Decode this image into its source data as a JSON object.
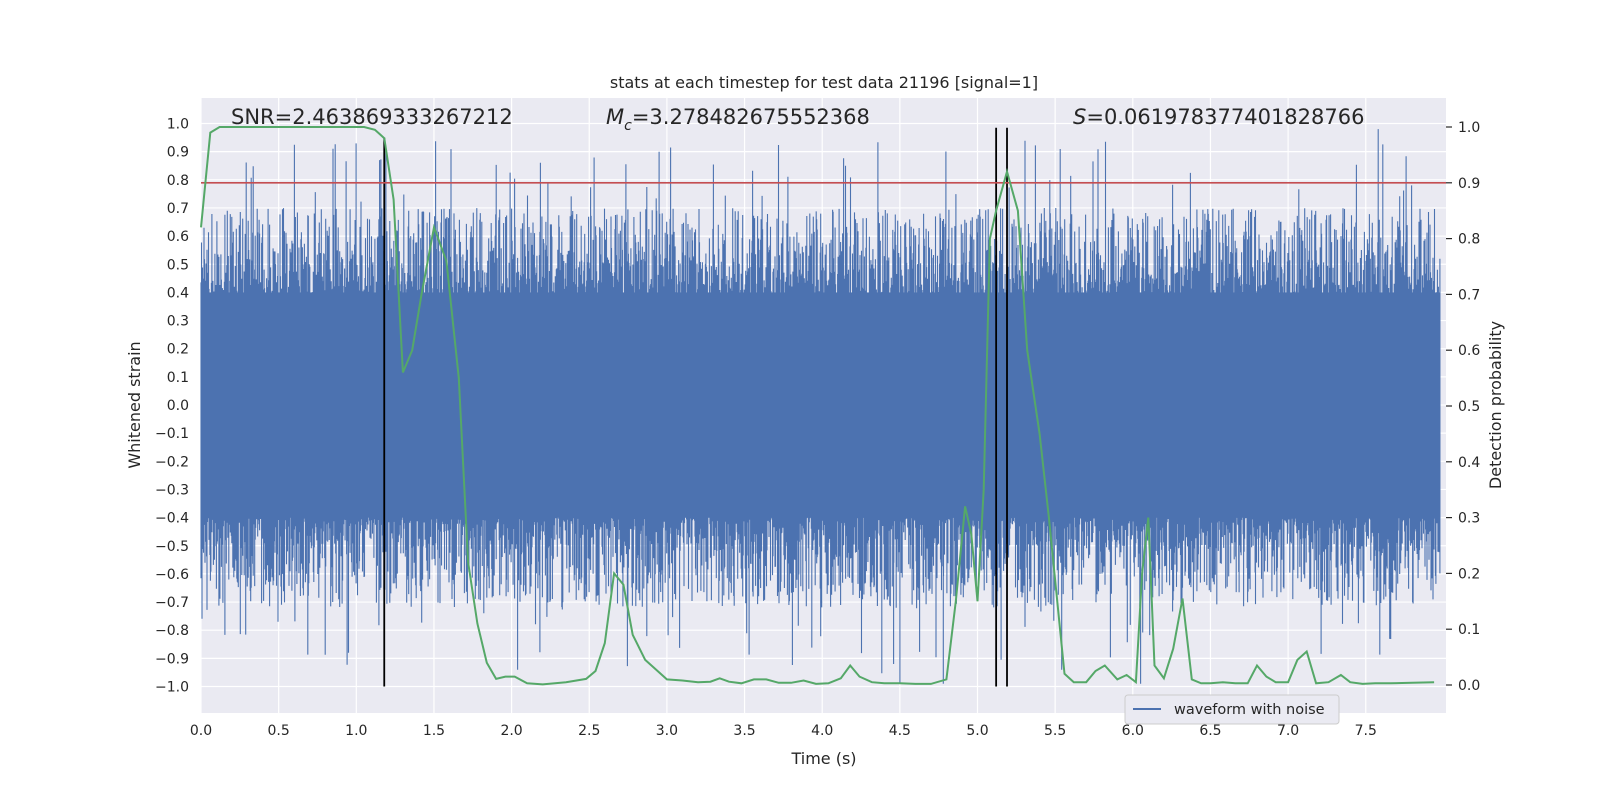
{
  "chart_data": {
    "type": "line",
    "title": "stats at each timestep for test data 21196 [signal=1]",
    "xlabel": "Time (s)",
    "ylabel": "Whitened strain",
    "y2label": "Detection probability",
    "xlim": [
      0.0,
      8.0
    ],
    "ylim": [
      -1.1,
      1.1
    ],
    "y2lim": [
      -0.05,
      1.04
    ],
    "x_ticks": [
      0.0,
      0.5,
      1.0,
      1.5,
      2.0,
      2.5,
      3.0,
      3.5,
      4.0,
      4.5,
      5.0,
      5.5,
      6.0,
      6.5,
      7.0,
      7.5
    ],
    "x_tick_labels": [
      "0.0",
      "0.5",
      "1.0",
      "1.5",
      "2.0",
      "2.5",
      "3.0",
      "3.5",
      "4.0",
      "4.5",
      "5.0",
      "5.5",
      "6.0",
      "6.5",
      "7.0",
      "7.5"
    ],
    "y_ticks": [
      1.0,
      0.9,
      0.8,
      0.7,
      0.6,
      0.5,
      0.4,
      0.3,
      0.2,
      0.1,
      0.0,
      -0.1,
      -0.2,
      -0.3,
      -0.4,
      -0.5,
      -0.6,
      -0.7,
      -0.8,
      -0.9,
      -1.0
    ],
    "y_tick_labels": [
      "1.0",
      "0.9",
      "0.8",
      "0.7",
      "0.6",
      "0.5",
      "0.4",
      "0.3",
      "0.2",
      "0.1",
      "0.0",
      "−0.1",
      "−0.2",
      "−0.3",
      "−0.4",
      "−0.5",
      "−0.6",
      "−0.7",
      "−0.8",
      "−0.9",
      "−1.0"
    ],
    "y2_ticks": [
      1.0,
      0.9,
      0.8,
      0.7,
      0.6,
      0.5,
      0.4,
      0.3,
      0.2,
      0.1,
      0.0
    ],
    "y2_tick_labels": [
      "1.0",
      "0.9",
      "0.8",
      "0.7",
      "0.6",
      "0.5",
      "0.4",
      "0.3",
      "0.2",
      "0.1",
      "0.0"
    ],
    "annotations": {
      "snr": "SNR=2.463869333267212",
      "mc_symbol": "M",
      "mc_sub": "c",
      "mc_value": "=3.278482675552368",
      "s_symbol": "S",
      "s_value": "=0.061978377401828766"
    },
    "legend": {
      "label": "waveform with noise",
      "location": "lower-right"
    },
    "threshold": {
      "y2": 0.9,
      "color": "#c44e52"
    },
    "markers_x": [
      1.18,
      5.12,
      5.19
    ],
    "waveform": {
      "name": "waveform with noise",
      "color": "#4c72b0",
      "band_ylim": [
        -0.4,
        0.4
      ],
      "spike_x_step": 0.025,
      "typical_peak_max": 0.5,
      "typical_trough_min": -0.55,
      "seed": 21196
    },
    "probability": {
      "name": "detection probability",
      "color": "#55a868",
      "x": [
        0.0,
        0.06,
        0.12,
        0.2,
        0.35,
        0.6,
        0.9,
        1.05,
        1.12,
        1.18,
        1.24,
        1.3,
        1.36,
        1.42,
        1.5,
        1.58,
        1.66,
        1.72,
        1.78,
        1.84,
        1.9,
        1.96,
        2.02,
        2.1,
        2.2,
        2.35,
        2.48,
        2.54,
        2.6,
        2.66,
        2.72,
        2.78,
        2.86,
        2.94,
        3.0,
        3.1,
        3.2,
        3.28,
        3.34,
        3.4,
        3.48,
        3.56,
        3.64,
        3.72,
        3.8,
        3.88,
        3.96,
        4.04,
        4.12,
        4.18,
        4.24,
        4.32,
        4.4,
        4.5,
        4.6,
        4.7,
        4.8,
        4.86,
        4.92,
        4.96,
        5.0,
        5.04,
        5.08,
        5.12,
        5.19,
        5.26,
        5.32,
        5.4,
        5.46,
        5.56,
        5.62,
        5.7,
        5.76,
        5.82,
        5.9,
        5.96,
        6.02,
        6.06,
        6.1,
        6.14,
        6.2,
        6.26,
        6.32,
        6.38,
        6.44,
        6.5,
        6.58,
        6.66,
        6.74,
        6.8,
        6.86,
        6.92,
        7.0,
        7.06,
        7.12,
        7.18,
        7.26,
        7.34,
        7.4,
        7.48,
        7.56,
        7.66,
        7.8,
        7.94
      ],
      "y": [
        0.82,
        0.99,
        1.0,
        1.0,
        1.0,
        1.0,
        1.0,
        1.0,
        0.995,
        0.98,
        0.87,
        0.56,
        0.6,
        0.7,
        0.82,
        0.76,
        0.55,
        0.22,
        0.11,
        0.04,
        0.011,
        0.015,
        0.015,
        0.003,
        0.001,
        0.005,
        0.011,
        0.025,
        0.075,
        0.2,
        0.18,
        0.09,
        0.045,
        0.025,
        0.01,
        0.008,
        0.005,
        0.006,
        0.012,
        0.006,
        0.003,
        0.01,
        0.01,
        0.004,
        0.004,
        0.008,
        0.002,
        0.003,
        0.012,
        0.035,
        0.015,
        0.005,
        0.003,
        0.003,
        0.002,
        0.002,
        0.01,
        0.15,
        0.32,
        0.27,
        0.15,
        0.35,
        0.8,
        0.85,
        0.92,
        0.85,
        0.6,
        0.45,
        0.3,
        0.02,
        0.005,
        0.005,
        0.025,
        0.035,
        0.01,
        0.018,
        0.005,
        0.2,
        0.3,
        0.035,
        0.012,
        0.065,
        0.155,
        0.01,
        0.003,
        0.003,
        0.005,
        0.003,
        0.003,
        0.035,
        0.015,
        0.005,
        0.005,
        0.045,
        0.06,
        0.003,
        0.005,
        0.018,
        0.005,
        0.002,
        0.003,
        0.003,
        0.004,
        0.005
      ]
    }
  }
}
